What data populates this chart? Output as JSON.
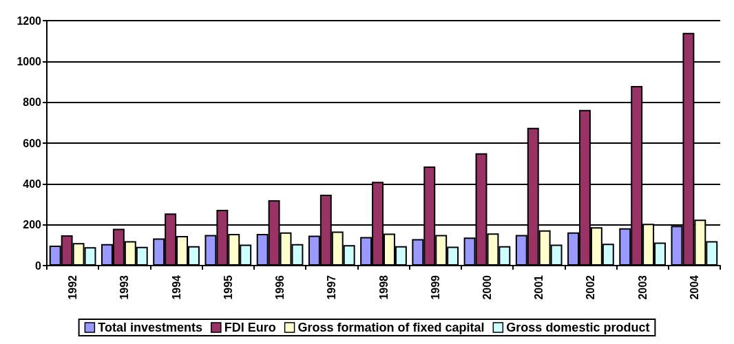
{
  "chart_data": {
    "type": "bar",
    "categories": [
      "1992",
      "1993",
      "1994",
      "1995",
      "1996",
      "1997",
      "1998",
      "1999",
      "2000",
      "2001",
      "2002",
      "2003",
      "2004"
    ],
    "series": [
      {
        "name": "Total investments",
        "color": "#9999ff",
        "values": [
          98,
          105,
          133,
          150,
          155,
          147,
          140,
          130,
          137,
          150,
          163,
          183,
          195
        ]
      },
      {
        "name": "FDI Euro",
        "color": "#993366",
        "values": [
          148,
          180,
          255,
          273,
          320,
          347,
          410,
          485,
          550,
          675,
          763,
          880,
          1140
        ]
      },
      {
        "name": "Gross formation of fixed capital",
        "color": "#ffffcc",
        "values": [
          110,
          120,
          145,
          155,
          163,
          167,
          157,
          150,
          158,
          173,
          188,
          205,
          225
        ]
      },
      {
        "name": "Gross domestic product",
        "color": "#ccffff",
        "values": [
          90,
          92,
          95,
          103,
          105,
          100,
          95,
          93,
          95,
          103,
          107,
          113,
          120
        ]
      }
    ],
    "ylim": [
      0,
      1200
    ],
    "yticks": [
      0,
      200,
      400,
      600,
      800,
      1000,
      1200
    ],
    "grid": "y",
    "legend": "bottom"
  }
}
